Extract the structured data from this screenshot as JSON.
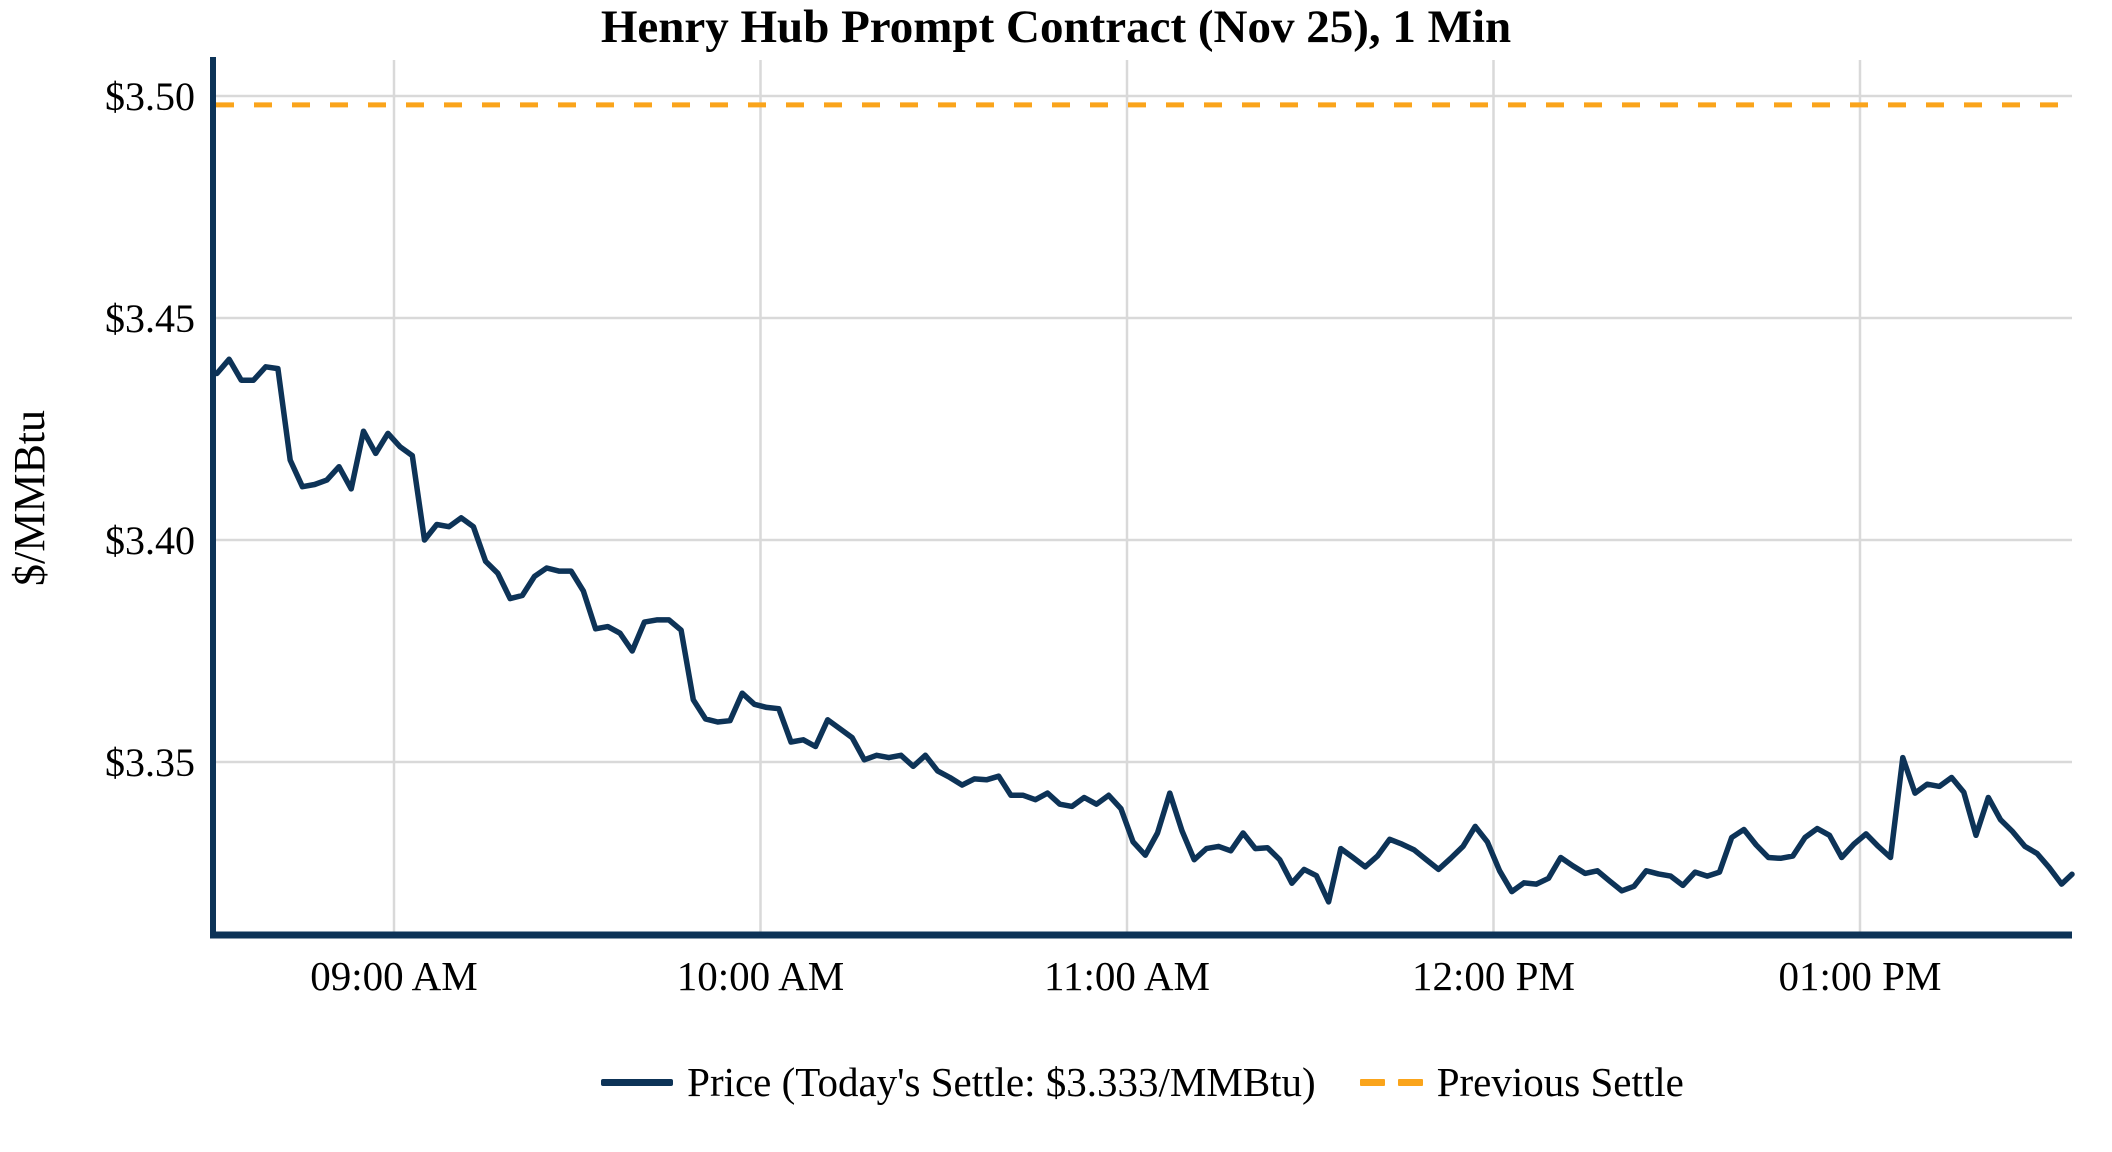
{
  "chart_data": {
    "type": "line",
    "title": "Henry Hub Prompt Contract (Nov 25), 1 Min",
    "xlabel": "",
    "ylabel": "$/MMBtu",
    "x_tick_labels": [
      "09:00 AM",
      "10:00 AM",
      "11:00 AM",
      "12:00 PM",
      "01:00 PM"
    ],
    "y_tick_labels": [
      "$3.50",
      "$3.45",
      "$3.40",
      "$3.35"
    ],
    "y_tick_values": [
      3.5,
      3.45,
      3.4,
      3.35
    ],
    "ylim": [
      3.311,
      3.508
    ],
    "x_range": [
      "08:30",
      "13:35"
    ],
    "grid": true,
    "legend_position": "bottom",
    "todays_settle": 3.333,
    "previous_settle": 3.498,
    "series": [
      {
        "name": "Price (Today's Settle: $3.333/MMBtu)",
        "type": "line",
        "style": "solid",
        "color": "#0D3357",
        "x": [
          "08:31",
          "08:33",
          "08:35",
          "08:37",
          "08:39",
          "08:41",
          "08:43",
          "08:45",
          "08:47",
          "08:49",
          "08:51",
          "08:53",
          "08:55",
          "08:57",
          "08:59",
          "09:01",
          "09:03",
          "09:05",
          "09:07",
          "09:09",
          "09:11",
          "09:13",
          "09:15",
          "09:17",
          "09:19",
          "09:21",
          "09:23",
          "09:25",
          "09:27",
          "09:29",
          "09:31",
          "09:33",
          "09:35",
          "09:37",
          "09:39",
          "09:41",
          "09:43",
          "09:45",
          "09:47",
          "09:49",
          "09:51",
          "09:53",
          "09:55",
          "09:57",
          "09:59",
          "10:01",
          "10:03",
          "10:05",
          "10:07",
          "10:09",
          "10:11",
          "10:13",
          "10:15",
          "10:17",
          "10:19",
          "10:21",
          "10:23",
          "10:25",
          "10:27",
          "10:29",
          "10:31",
          "10:33",
          "10:35",
          "10:37",
          "10:39",
          "10:41",
          "10:43",
          "10:45",
          "10:47",
          "10:49",
          "10:51",
          "10:53",
          "10:55",
          "10:57",
          "10:59",
          "11:01",
          "11:03",
          "11:05",
          "11:07",
          "11:09",
          "11:11",
          "11:13",
          "11:15",
          "11:17",
          "11:19",
          "11:21",
          "11:23",
          "11:25",
          "11:27",
          "11:29",
          "11:31",
          "11:33",
          "11:35",
          "11:37",
          "11:39",
          "11:41",
          "11:43",
          "11:45",
          "11:47",
          "11:49",
          "11:51",
          "11:53",
          "11:55",
          "11:57",
          "11:59",
          "12:01",
          "12:03",
          "12:05",
          "12:07",
          "12:09",
          "12:11",
          "12:13",
          "12:15",
          "12:17",
          "12:19",
          "12:21",
          "12:23",
          "12:25",
          "12:27",
          "12:29",
          "12:31",
          "12:33",
          "12:35",
          "12:37",
          "12:39",
          "12:41",
          "12:43",
          "12:45",
          "12:47",
          "12:49",
          "12:51",
          "12:53",
          "12:55",
          "12:57",
          "12:59",
          "13:01",
          "13:03",
          "13:05",
          "13:07",
          "13:09",
          "13:11",
          "13:13",
          "13:15",
          "13:17",
          "13:19",
          "13:21",
          "13:23",
          "13:25",
          "13:27",
          "13:29",
          "13:31",
          "13:33",
          "13:35"
        ],
        "values": [
          3.4375,
          3.4407,
          3.436,
          3.436,
          3.439,
          3.4386,
          3.418,
          3.412,
          3.4125,
          3.4135,
          3.4165,
          3.4115,
          3.4245,
          3.4195,
          3.424,
          3.421,
          3.419,
          3.4,
          3.4035,
          3.403,
          3.405,
          3.403,
          3.3952,
          3.3925,
          3.3868,
          3.3875,
          3.3918,
          3.3937,
          3.393,
          3.393,
          3.3885,
          3.38,
          3.3805,
          3.379,
          3.375,
          3.3815,
          3.382,
          3.382,
          3.3797,
          3.364,
          3.3597,
          3.359,
          3.3593,
          3.3655,
          3.363,
          3.3623,
          3.362,
          3.3545,
          3.355,
          3.3535,
          3.3595,
          3.3575,
          3.3555,
          3.3505,
          3.3515,
          3.351,
          3.3515,
          3.349,
          3.3515,
          3.348,
          3.3465,
          3.3448,
          3.3462,
          3.346,
          3.3468,
          3.3425,
          3.3425,
          3.3415,
          3.343,
          3.3405,
          3.34,
          3.342,
          3.3405,
          3.3425,
          3.3395,
          3.332,
          3.329,
          3.334,
          3.343,
          3.3345,
          3.328,
          3.3305,
          3.331,
          3.33,
          3.334,
          3.3305,
          3.3307,
          3.328,
          3.3227,
          3.3258,
          3.3244,
          3.3185,
          3.3305,
          3.3285,
          3.3264,
          3.3288,
          3.3326,
          3.3315,
          3.3302,
          3.328,
          3.3258,
          3.3283,
          3.331,
          3.3355,
          3.332,
          3.3255,
          3.3208,
          3.3228,
          3.3225,
          3.3238,
          3.3285,
          3.3266,
          3.3249,
          3.3255,
          3.3232,
          3.321,
          3.322,
          3.3255,
          3.3248,
          3.3243,
          3.3222,
          3.3252,
          3.3243,
          3.3252,
          3.333,
          3.3348,
          3.3313,
          3.3285,
          3.3283,
          3.3288,
          3.333,
          3.335,
          3.3335,
          3.3285,
          3.3315,
          3.3338,
          3.331,
          3.3285,
          3.351,
          3.343,
          3.345,
          3.3445,
          3.3465,
          3.3432,
          3.3335,
          3.342,
          3.337,
          3.3343,
          3.331,
          3.3294,
          3.3262,
          3.3225,
          3.3247
        ]
      },
      {
        "name": "Previous Settle",
        "type": "hline",
        "style": "dashed",
        "color": "#FAA41B",
        "value": 3.498
      }
    ]
  },
  "colors": {
    "price_line": "#0D3357",
    "previous_settle": "#FAA41B",
    "gridline": "#D9D9D9",
    "axis": "#0D3357",
    "text": "#000000",
    "background": "#FFFFFF"
  }
}
